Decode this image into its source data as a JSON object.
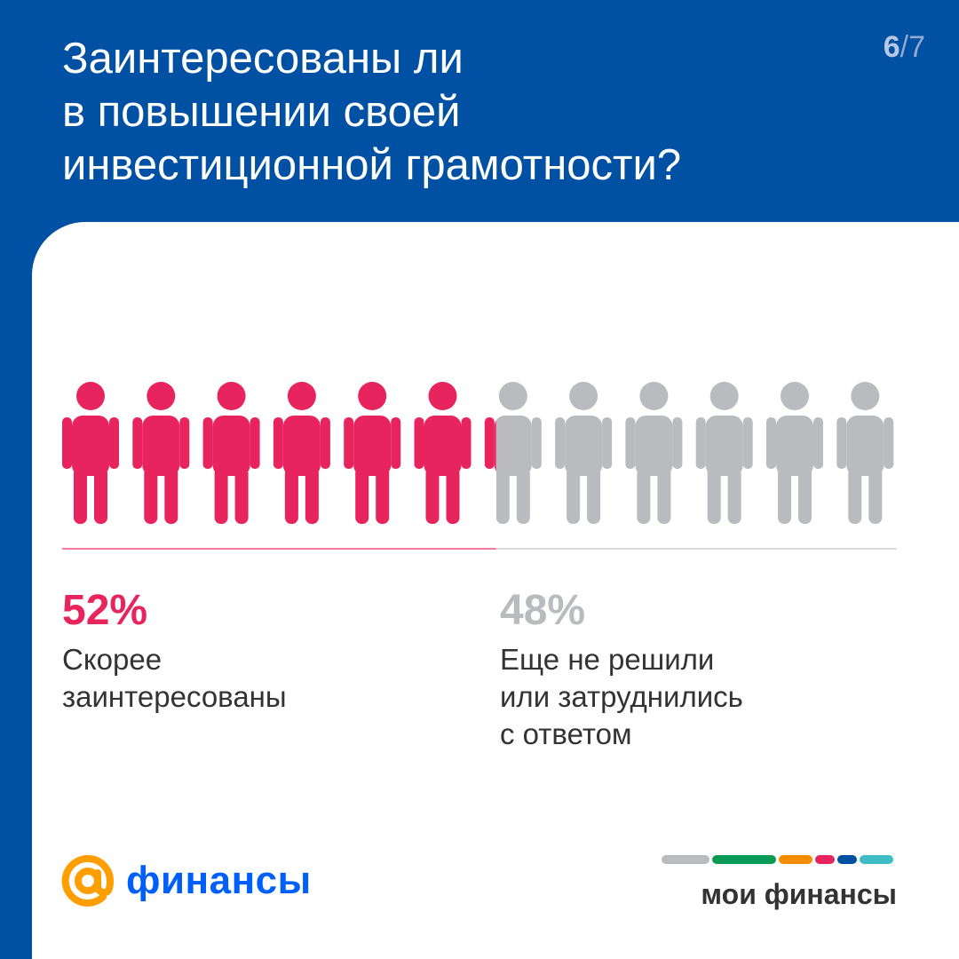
{
  "header": {
    "title_lines": [
      "Заинтересованы ли",
      "в повышении своей",
      "инвестиционной грамотности?"
    ],
    "page_current": "6",
    "page_total": "/7"
  },
  "chart_data": {
    "type": "pictogram",
    "title": "Заинтересованы ли в повышении своей инвестиционной грамотности?",
    "categories": [
      "Скорее заинтересованы",
      "Еще не решили или затруднились с ответом"
    ],
    "values": [
      52,
      48
    ],
    "unit": "%",
    "colors": [
      "#e8245e",
      "#b9bbbe"
    ]
  },
  "results": [
    {
      "percent": "52%",
      "label_lines": [
        "Скорее",
        "заинтересованы"
      ],
      "color": "#e8245e"
    },
    {
      "percent": "48%",
      "label_lines": [
        "Еще не решили",
        "или затруднились",
        "с ответом"
      ],
      "color": "#b9bbbe"
    }
  ],
  "footer": {
    "left_logo_text": "финансы",
    "left_logo_color": "#005ff9",
    "left_logo_icon": "at-sign-icon",
    "left_logo_icon_color": "#ff9e00",
    "right_logo_text": "мои финансы",
    "right_logo_stripes": [
      "#b9bbbe",
      "#0b9a55",
      "#f28c00",
      "#e8245e",
      "#0050a3",
      "#3fbdc6"
    ]
  },
  "colors": {
    "background": "#0050a3",
    "card": "#ffffff",
    "accent": "#e8245e",
    "neutral": "#b9bbbe",
    "text": "#333333"
  }
}
